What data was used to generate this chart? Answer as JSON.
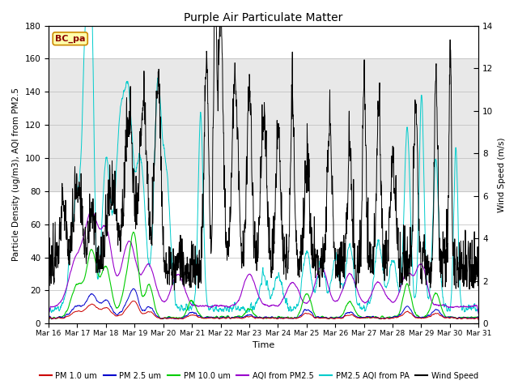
{
  "title": "Purple Air Particulate Matter",
  "xlabel": "Time",
  "ylabel_left": "Particle Density (ug/m3), AQI from PM2.5",
  "ylabel_right": "Wind Speed (m/s)",
  "site_label": "BC_pa",
  "ylim_left": [
    0,
    180
  ],
  "ylim_right": [
    0,
    14
  ],
  "n_days": 15,
  "x_tick_labels": [
    "Mar 16",
    "Mar 17",
    "Mar 18",
    "Mar 19",
    "Mar 20",
    "Mar 21",
    "Mar 22",
    "Mar 23",
    "Mar 24",
    "Mar 25",
    "Mar 26",
    "Mar 27",
    "Mar 28",
    "Mar 29",
    "Mar 30",
    "Mar 31"
  ],
  "colors": {
    "PM1": "#cc0000",
    "PM25": "#0000cc",
    "PM10": "#00cc00",
    "AQI_PM25": "#9900cc",
    "PM25_AQI_PA": "#00cccc",
    "Wind": "#000000"
  },
  "background_band": [
    80,
    160
  ],
  "background_color": "#e8e8e8",
  "legend_items": [
    "PM 1.0 um",
    "PM 2.5 um",
    "PM 10.0 um",
    "AQI from PM2.5",
    "PM2.5 AQI from PA",
    "Wind Speed"
  ],
  "legend_colors": [
    "#cc0000",
    "#0000cc",
    "#00cc00",
    "#9900cc",
    "#00cccc",
    "#000000"
  ],
  "figsize": [
    6.4,
    4.8
  ],
  "dpi": 100
}
